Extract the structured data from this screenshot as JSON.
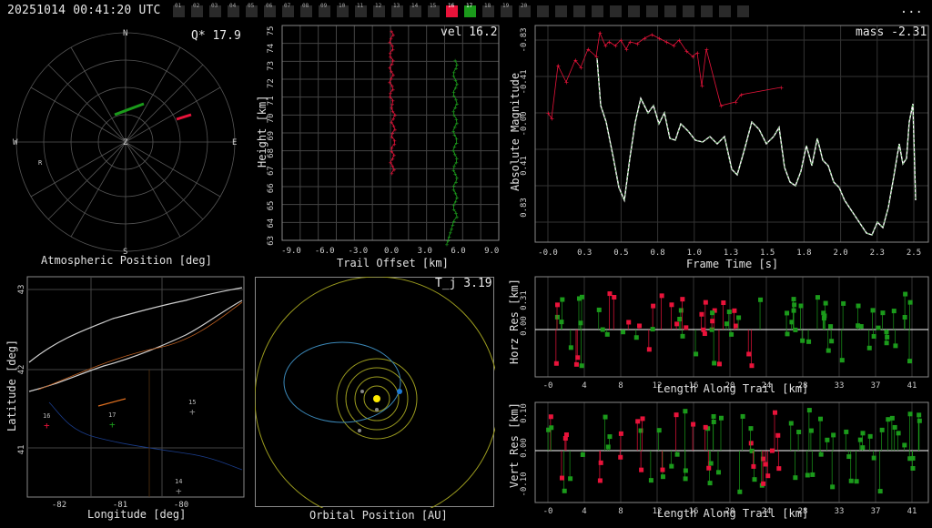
{
  "header": {
    "timestamp": "20251014 00:41:20 UTC",
    "menu_label": "...",
    "stations": [
      "01",
      "02",
      "03",
      "04",
      "05",
      "06",
      "07",
      "08",
      "09",
      "10",
      "11",
      "12",
      "13",
      "14",
      "15",
      "16",
      "17",
      "18",
      "19",
      "20"
    ],
    "station_red": "16",
    "station_green": "17"
  },
  "atmos": {
    "title": "Atmospheric Position [deg]",
    "q_label": "Q* 17.9",
    "dirs": {
      "n": "N",
      "s": "S",
      "e": "E",
      "w": "W",
      "z": "Z",
      "r": "R"
    }
  },
  "height": {
    "xlabel": "Trail Offset [km]",
    "ylabel": "Height [km]",
    "vel_label": "vel 16.2",
    "xticks": [
      "-9.0",
      "-6.0",
      "-3.0",
      "0.0",
      "3.0",
      "6.0",
      "9.0"
    ],
    "yticks": [
      "75",
      "74",
      "73",
      "72",
      "71",
      "70",
      "69",
      "68",
      "67",
      "66",
      "65",
      "64",
      "63"
    ]
  },
  "mag": {
    "xlabel": "Frame Time [s]",
    "ylabel": "Absolute Magnitude",
    "mass_label": "mass -2.31",
    "xticks": [
      "-0.0",
      "0.3",
      "0.5",
      "0.8",
      "1.0",
      "1.3",
      "1.5",
      "1.8",
      "2.0",
      "2.3",
      "2.5"
    ],
    "yticks": [
      "-0.83",
      "-0.41",
      "-0.00",
      "0.41",
      "0.83"
    ]
  },
  "map": {
    "xlabel": "Longitude [deg]",
    "ylabel": "Latitude [deg]",
    "xticks": [
      "-82",
      "-81",
      "-80"
    ],
    "yticks": [
      "43",
      "42",
      "41"
    ],
    "stations": [
      "16",
      "17",
      "15",
      "14"
    ]
  },
  "orbit": {
    "xlabel": "Orbital Position [AU]",
    "tj_label": "T_j 3.19"
  },
  "horz": {
    "xlabel": "Length Along Trail [km]",
    "ylabel": "Horz Res [km]",
    "yticks": [
      "0.31",
      "0.00"
    ],
    "xticks": [
      "-0",
      "4",
      "8",
      "12",
      "16",
      "20",
      "24",
      "28",
      "33",
      "37",
      "41"
    ]
  },
  "vert": {
    "xlabel": "Length Along Trail [km]",
    "ylabel": "Vert Res [km]",
    "yticks": [
      "0.10",
      "0.00",
      "-0.10"
    ],
    "xticks": [
      "-0",
      "4",
      "8",
      "12",
      "16",
      "20",
      "24",
      "28",
      "33",
      "37",
      "41"
    ]
  },
  "colors": {
    "red": "#e8133a",
    "green": "#1b9a1b",
    "grid": "#444",
    "axis": "#cfcfcf"
  }
}
